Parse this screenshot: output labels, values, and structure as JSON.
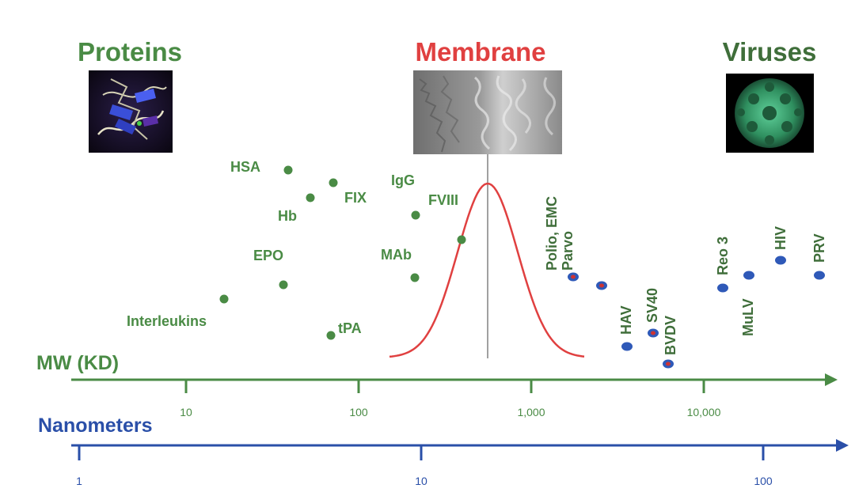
{
  "headers": {
    "proteins": "Proteins",
    "membrane": "Membrane",
    "viruses": "Viruses"
  },
  "colors": {
    "protein_green": "#4a8b45",
    "virus_green": "#3f6e3a",
    "membrane_red": "#e04040",
    "nano_blue": "#2a4fa8",
    "virus_blue": "#2f59b8",
    "virus_red": "#cc3333"
  },
  "axes": {
    "mw_title": "MW (KD)",
    "mw_ticks": [
      {
        "label": "10",
        "value": 10
      },
      {
        "label": "100",
        "value": 100
      },
      {
        "label": "1,000",
        "value": 1000
      },
      {
        "label": "10,000",
        "value": 10000
      }
    ],
    "nm_title": "Nanometers",
    "nm_ticks": [
      {
        "label": "1",
        "value": 1
      },
      {
        "label": "10",
        "value": 10
      },
      {
        "label": "100",
        "value": 100
      }
    ]
  },
  "proteins": [
    {
      "label": "HSA"
    },
    {
      "label": "FIX"
    },
    {
      "label": "Hb"
    },
    {
      "label": "IgG"
    },
    {
      "label": "FVIII"
    },
    {
      "label": "EPO"
    },
    {
      "label": "MAb"
    },
    {
      "label": "Interleukins"
    },
    {
      "label": "tPA"
    }
  ],
  "viruses": [
    {
      "label": "Polio, EMC"
    },
    {
      "label": "Parvo"
    },
    {
      "label": "HAV"
    },
    {
      "label": "SV40"
    },
    {
      "label": "BVDV"
    },
    {
      "label": "Reo 3"
    },
    {
      "label": "MuLV"
    },
    {
      "label": "HIV"
    },
    {
      "label": "PRV"
    }
  ]
}
